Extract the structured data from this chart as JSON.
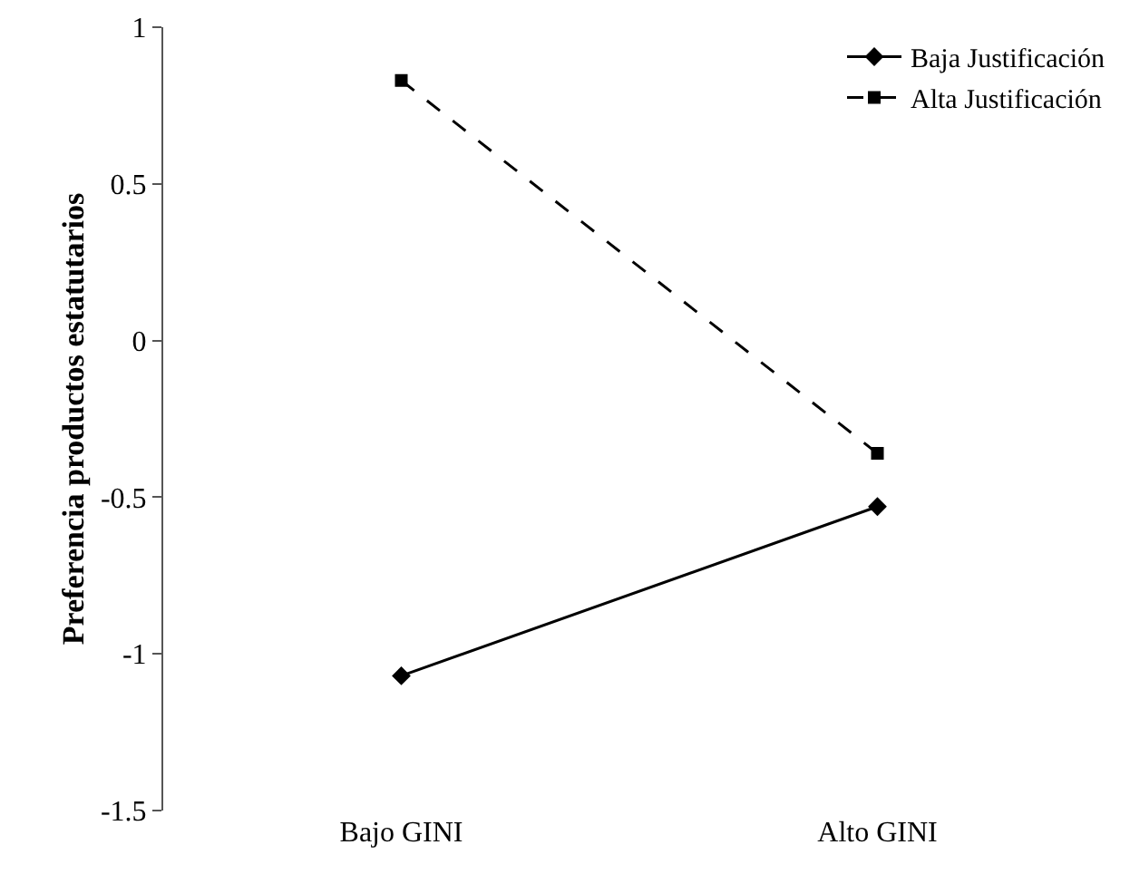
{
  "chart_data": {
    "type": "line",
    "ylabel": "Preferencia productos estatutarios",
    "categories": [
      "Bajo GINI",
      "Alto GINI"
    ],
    "series": [
      {
        "name": "Baja Justificación",
        "color": "#000000",
        "values": [
          -1.07,
          -0.53
        ],
        "marker": "diamond",
        "line_style": "solid"
      },
      {
        "name": "Alta Justificación",
        "color": "#000000",
        "values": [
          0.83,
          -0.36
        ],
        "marker": "square",
        "line_style": "dashed"
      }
    ],
    "ylim": [
      -1.5,
      1
    ],
    "yticks": [
      -1.5,
      -1,
      -0.5,
      0,
      0.5,
      1
    ],
    "grid": false,
    "legend": "top right"
  }
}
